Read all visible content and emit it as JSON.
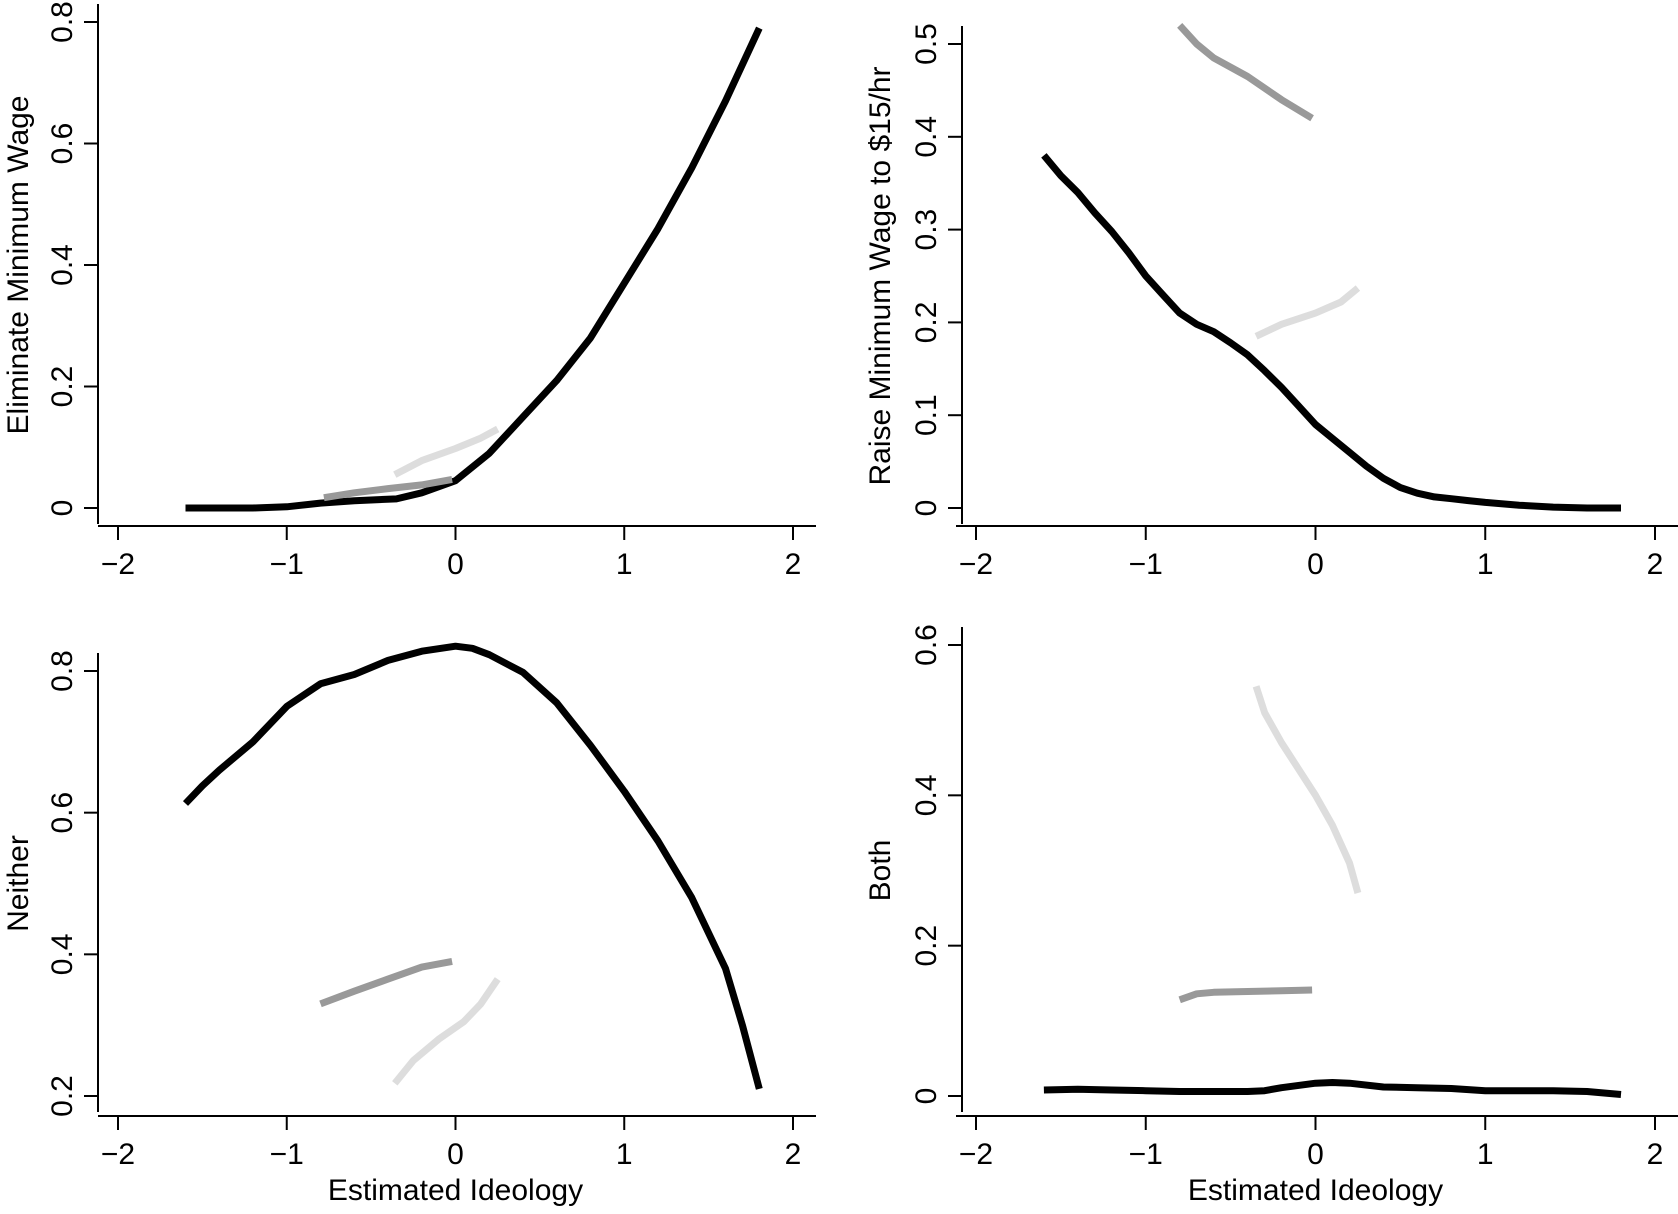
{
  "chart_data": [
    {
      "type": "line",
      "title": "",
      "xlabel": "",
      "ylabel": "Eliminate Minimum Wage",
      "xlim": [
        -2,
        2
      ],
      "ylim": [
        0,
        0.8
      ],
      "xticks": [
        "−2",
        "−1",
        "0",
        "1",
        "2"
      ],
      "yticks": [
        "0",
        "0.2",
        "0.4",
        "0.6",
        "0.8"
      ],
      "grid": false,
      "legend": "none",
      "series": [
        {
          "color": "#000000",
          "x": [
            -1.6,
            -1.2,
            -1.0,
            -0.8,
            -0.6,
            -0.35,
            -0.2,
            0,
            0.2,
            0.4,
            0.6,
            0.8,
            1.0,
            1.2,
            1.4,
            1.6,
            1.8
          ],
          "y": [
            0.0,
            0.0,
            0.002,
            0.008,
            0.012,
            0.015,
            0.025,
            0.045,
            0.09,
            0.15,
            0.21,
            0.28,
            0.37,
            0.46,
            0.56,
            0.67,
            0.79
          ]
        },
        {
          "color": "#999999",
          "x": [
            -0.78,
            -0.6,
            -0.4,
            -0.2,
            -0.02
          ],
          "y": [
            0.017,
            0.025,
            0.032,
            0.038,
            0.047
          ]
        },
        {
          "color": "#dddddd",
          "x": [
            -0.36,
            -0.2,
            0,
            0.15,
            0.25
          ],
          "y": [
            0.055,
            0.078,
            0.098,
            0.115,
            0.13
          ]
        }
      ]
    },
    {
      "type": "line",
      "title": "",
      "xlabel": "",
      "ylabel": "Raise Minimum Wage to $15/hr",
      "xlim": [
        -2,
        2
      ],
      "ylim": [
        0,
        0.5
      ],
      "xticks": [
        "−2",
        "−1",
        "0",
        "1",
        "2"
      ],
      "yticks": [
        "0",
        "0.1",
        "0.2",
        "0.3",
        "0.4",
        "0.5"
      ],
      "grid": false,
      "legend": "none",
      "series": [
        {
          "color": "#000000",
          "x": [
            -1.6,
            -1.5,
            -1.4,
            -1.3,
            -1.2,
            -1.1,
            -1.0,
            -0.9,
            -0.8,
            -0.7,
            -0.6,
            -0.5,
            -0.4,
            -0.3,
            -0.2,
            -0.1,
            0,
            0.1,
            0.2,
            0.3,
            0.4,
            0.5,
            0.6,
            0.7,
            0.8,
            0.9,
            1.0,
            1.2,
            1.4,
            1.6,
            1.8
          ],
          "y": [
            0.38,
            0.358,
            0.34,
            0.318,
            0.298,
            0.275,
            0.25,
            0.23,
            0.21,
            0.198,
            0.19,
            0.178,
            0.165,
            0.148,
            0.13,
            0.11,
            0.09,
            0.075,
            0.06,
            0.045,
            0.032,
            0.022,
            0.016,
            0.012,
            0.01,
            0.008,
            0.006,
            0.003,
            0.001,
            0.0,
            0.0
          ]
        },
        {
          "color": "#999999",
          "x": [
            -0.8,
            -0.7,
            -0.6,
            -0.4,
            -0.2,
            -0.02
          ],
          "y": [
            0.52,
            0.5,
            0.485,
            0.465,
            0.44,
            0.42
          ]
        },
        {
          "color": "#dddddd",
          "x": [
            -0.35,
            -0.2,
            0,
            0.15,
            0.25
          ],
          "y": [
            0.185,
            0.198,
            0.21,
            0.222,
            0.237
          ]
        }
      ]
    },
    {
      "type": "line",
      "title": "",
      "xlabel": "Estimated Ideology",
      "ylabel": "Neither",
      "xlim": [
        -2,
        2
      ],
      "ylim": [
        0.2,
        0.8
      ],
      "xticks": [
        "−2",
        "−1",
        "0",
        "1",
        "2"
      ],
      "yticks": [
        "0.2",
        "0.4",
        "0.6",
        "0.8"
      ],
      "grid": false,
      "legend": "none",
      "series": [
        {
          "color": "#000000",
          "x": [
            -1.6,
            -1.5,
            -1.4,
            -1.2,
            -1.0,
            -0.8,
            -0.6,
            -0.4,
            -0.2,
            0,
            0.1,
            0.2,
            0.4,
            0.6,
            0.8,
            1.0,
            1.2,
            1.4,
            1.6,
            1.7,
            1.8
          ],
          "y": [
            0.613,
            0.638,
            0.66,
            0.7,
            0.75,
            0.782,
            0.795,
            0.815,
            0.828,
            0.835,
            0.832,
            0.823,
            0.798,
            0.755,
            0.695,
            0.63,
            0.56,
            0.48,
            0.38,
            0.3,
            0.21
          ]
        },
        {
          "color": "#999999",
          "x": [
            -0.8,
            -0.6,
            -0.4,
            -0.2,
            -0.02
          ],
          "y": [
            0.33,
            0.348,
            0.365,
            0.382,
            0.39
          ]
        },
        {
          "color": "#dddddd",
          "x": [
            -0.36,
            -0.25,
            -0.1,
            0.05,
            0.15,
            0.25
          ],
          "y": [
            0.218,
            0.25,
            0.28,
            0.305,
            0.33,
            0.365
          ]
        }
      ]
    },
    {
      "type": "line",
      "title": "",
      "xlabel": "Estimated Ideology",
      "ylabel": "Both",
      "xlim": [
        -2,
        2
      ],
      "ylim": [
        0,
        0.6
      ],
      "xticks": [
        "−2",
        "−1",
        "0",
        "1",
        "2"
      ],
      "yticks": [
        "0",
        "0.2",
        "0.4",
        "0.6"
      ],
      "grid": false,
      "legend": "none",
      "series": [
        {
          "color": "#000000",
          "x": [
            -1.6,
            -1.4,
            -1.2,
            -1.0,
            -0.8,
            -0.6,
            -0.4,
            -0.3,
            -0.2,
            0,
            0.1,
            0.2,
            0.4,
            0.6,
            0.8,
            1.0,
            1.2,
            1.4,
            1.6,
            1.8
          ],
          "y": [
            0.008,
            0.009,
            0.008,
            0.007,
            0.006,
            0.006,
            0.006,
            0.007,
            0.011,
            0.017,
            0.018,
            0.017,
            0.012,
            0.011,
            0.01,
            0.007,
            0.007,
            0.007,
            0.006,
            0.002
          ]
        },
        {
          "color": "#999999",
          "x": [
            -0.8,
            -0.7,
            -0.6,
            -0.4,
            -0.2,
            -0.02
          ],
          "y": [
            0.128,
            0.136,
            0.138,
            0.139,
            0.14,
            0.141
          ]
        },
        {
          "color": "#dddddd",
          "x": [
            -0.35,
            -0.3,
            -0.2,
            -0.1,
            0,
            0.1,
            0.2,
            0.25
          ],
          "y": [
            0.545,
            0.51,
            0.47,
            0.435,
            0.4,
            0.36,
            0.31,
            0.27
          ]
        }
      ]
    }
  ]
}
